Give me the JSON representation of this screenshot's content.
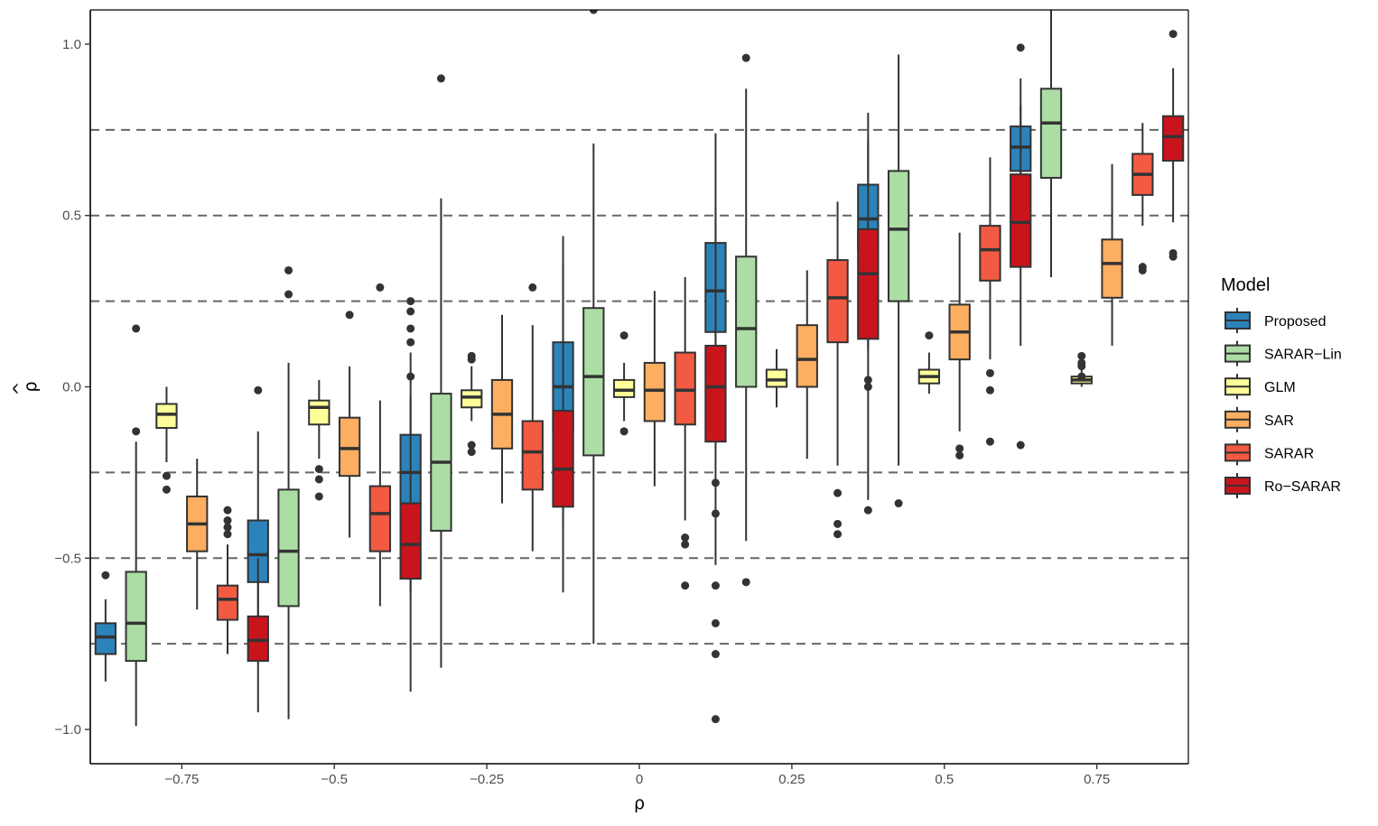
{
  "chart_data": {
    "type": "boxplot",
    "xlabel": "ρ",
    "ylabel": "ρ̂",
    "ylabel_base": "ρ",
    "ylabel_accent": "^",
    "ylim": [
      -1.1,
      1.1
    ],
    "y_ticks": [
      -1.0,
      -0.5,
      0.0,
      0.5,
      1.0
    ],
    "y_tick_labels": [
      "−1.0",
      "−0.5",
      "0.0",
      "0.5",
      "1.0"
    ],
    "x_ticks": [
      -0.75,
      -0.5,
      -0.25,
      0,
      0.25,
      0.5,
      0.75
    ],
    "x_tick_labels": [
      "−0.75",
      "−0.5",
      "−0.25",
      "0",
      "0.25",
      "0.5",
      "0.75"
    ],
    "xlim": [
      -0.9,
      0.9
    ],
    "reference_lines": [
      -0.75,
      -0.5,
      -0.25,
      0.25,
      0.5,
      0.75
    ],
    "grid": false,
    "legend": {
      "title": "Model",
      "position": "right",
      "entries": [
        "Proposed",
        "SARAR−Lin",
        "GLM",
        "SAR",
        "SARAR",
        "Ro−SARAR"
      ]
    },
    "series": [
      {
        "name": "Proposed",
        "color": "#2b83ba",
        "boxes": [
          {
            "x": -0.75,
            "lower": -0.86,
            "q1": -0.78,
            "median": -0.73,
            "q3": -0.69,
            "upper": -0.62,
            "outliers": [
              -0.55
            ]
          },
          {
            "x": -0.5,
            "lower": -0.79,
            "q1": -0.57,
            "median": -0.49,
            "q3": -0.39,
            "upper": -0.13,
            "outliers": [
              -0.01
            ]
          },
          {
            "x": -0.25,
            "lower": -0.6,
            "q1": -0.34,
            "median": -0.25,
            "q3": -0.14,
            "upper": 0.1,
            "outliers": [
              0.25,
              0.17
            ]
          },
          {
            "x": 0,
            "lower": -0.41,
            "q1": -0.13,
            "median": 0.0,
            "q3": 0.13,
            "upper": 0.44,
            "outliers": []
          },
          {
            "x": 0.25,
            "lower": -0.15,
            "q1": 0.16,
            "median": 0.28,
            "q3": 0.42,
            "upper": 0.74,
            "outliers": [
              -0.28,
              -0.37
            ]
          },
          {
            "x": 0.5,
            "lower": 0.11,
            "q1": 0.4,
            "median": 0.49,
            "q3": 0.59,
            "upper": 0.8,
            "outliers": [
              0.02,
              0.0
            ]
          },
          {
            "x": 0.75,
            "lower": 0.5,
            "q1": 0.63,
            "median": 0.7,
            "q3": 0.76,
            "upper": 0.9,
            "outliers": [
              0.99
            ]
          }
        ]
      },
      {
        "name": "SARAR−Lin",
        "color": "#abdda4",
        "boxes": [
          {
            "x": -0.75,
            "lower": -0.99,
            "q1": -0.8,
            "median": -0.69,
            "q3": -0.54,
            "upper": -0.16,
            "outliers": [
              0.17,
              -0.13
            ]
          },
          {
            "x": -0.5,
            "lower": -0.97,
            "q1": -0.64,
            "median": -0.48,
            "q3": -0.3,
            "upper": 0.07,
            "outliers": [
              0.34,
              0.27
            ]
          },
          {
            "x": -0.25,
            "lower": -0.82,
            "q1": -0.42,
            "median": -0.22,
            "q3": -0.02,
            "upper": 0.55,
            "outliers": [
              0.9
            ]
          },
          {
            "x": 0,
            "lower": -0.75,
            "q1": -0.2,
            "median": 0.03,
            "q3": 0.23,
            "upper": 0.71,
            "outliers": [
              1.1
            ]
          },
          {
            "x": 0.25,
            "lower": -0.45,
            "q1": 0.0,
            "median": 0.17,
            "q3": 0.38,
            "upper": 0.87,
            "outliers": [
              0.96,
              -0.57
            ]
          },
          {
            "x": 0.5,
            "lower": -0.23,
            "q1": 0.25,
            "median": 0.46,
            "q3": 0.63,
            "upper": 0.97,
            "outliers": [
              -0.34
            ]
          },
          {
            "x": 0.75,
            "lower": 0.32,
            "q1": 0.61,
            "median": 0.77,
            "q3": 0.87,
            "upper": 1.1,
            "outliers": []
          }
        ]
      },
      {
        "name": "GLM",
        "color": "#ffff99",
        "boxes": [
          {
            "x": -0.75,
            "lower": -0.22,
            "q1": -0.12,
            "median": -0.08,
            "q3": -0.05,
            "upper": 0.0,
            "outliers": [
              -0.26,
              -0.3
            ]
          },
          {
            "x": -0.5,
            "lower": -0.21,
            "q1": -0.11,
            "median": -0.06,
            "q3": -0.04,
            "upper": 0.02,
            "outliers": [
              -0.24,
              -0.27,
              -0.32
            ]
          },
          {
            "x": -0.25,
            "lower": -0.1,
            "q1": -0.06,
            "median": -0.03,
            "q3": -0.01,
            "upper": 0.06,
            "outliers": [
              0.09,
              0.08,
              -0.17,
              -0.19
            ]
          },
          {
            "x": 0,
            "lower": -0.1,
            "q1": -0.03,
            "median": -0.01,
            "q3": 0.02,
            "upper": 0.07,
            "outliers": [
              0.15,
              -0.13
            ]
          },
          {
            "x": 0.25,
            "lower": -0.06,
            "q1": 0.0,
            "median": 0.02,
            "q3": 0.05,
            "upper": 0.11,
            "outliers": []
          },
          {
            "x": 0.5,
            "lower": -0.02,
            "q1": 0.01,
            "median": 0.03,
            "q3": 0.05,
            "upper": 0.1,
            "outliers": [
              0.15
            ]
          },
          {
            "x": 0.75,
            "lower": 0.0,
            "q1": 0.01,
            "median": 0.02,
            "q3": 0.03,
            "upper": 0.05,
            "outliers": [
              0.09,
              0.07,
              0.06,
              0.03
            ]
          }
        ]
      },
      {
        "name": "SAR",
        "color": "#fdae61",
        "boxes": [
          {
            "x": -0.75,
            "lower": -0.65,
            "q1": -0.48,
            "median": -0.4,
            "q3": -0.32,
            "upper": -0.21,
            "outliers": []
          },
          {
            "x": -0.5,
            "lower": -0.44,
            "q1": -0.26,
            "median": -0.18,
            "q3": -0.09,
            "upper": 0.06,
            "outliers": [
              0.21
            ]
          },
          {
            "x": -0.25,
            "lower": -0.34,
            "q1": -0.18,
            "median": -0.08,
            "q3": 0.02,
            "upper": 0.21,
            "outliers": []
          },
          {
            "x": 0,
            "lower": -0.29,
            "q1": -0.1,
            "median": -0.01,
            "q3": 0.07,
            "upper": 0.28,
            "outliers": []
          },
          {
            "x": 0.25,
            "lower": -0.21,
            "q1": 0.0,
            "median": 0.08,
            "q3": 0.18,
            "upper": 0.34,
            "outliers": []
          },
          {
            "x": 0.5,
            "lower": -0.13,
            "q1": 0.08,
            "median": 0.16,
            "q3": 0.24,
            "upper": 0.45,
            "outliers": [
              -0.18,
              -0.2
            ]
          },
          {
            "x": 0.75,
            "lower": 0.12,
            "q1": 0.26,
            "median": 0.36,
            "q3": 0.43,
            "upper": 0.65,
            "outliers": []
          }
        ]
      },
      {
        "name": "SARAR",
        "color": "#f25a41",
        "boxes": [
          {
            "x": -0.75,
            "lower": -0.78,
            "q1": -0.68,
            "median": -0.62,
            "q3": -0.58,
            "upper": -0.46,
            "outliers": [
              -0.36,
              -0.39,
              -0.41,
              -0.43
            ]
          },
          {
            "x": -0.5,
            "lower": -0.64,
            "q1": -0.48,
            "median": -0.37,
            "q3": -0.29,
            "upper": -0.04,
            "outliers": [
              0.29
            ]
          },
          {
            "x": -0.25,
            "lower": -0.48,
            "q1": -0.3,
            "median": -0.19,
            "q3": -0.1,
            "upper": 0.18,
            "outliers": [
              0.29
            ]
          },
          {
            "x": 0,
            "lower": -0.39,
            "q1": -0.11,
            "median": -0.01,
            "q3": 0.1,
            "upper": 0.32,
            "outliers": [
              -0.44,
              -0.46,
              -0.58
            ]
          },
          {
            "x": 0.25,
            "lower": -0.23,
            "q1": 0.13,
            "median": 0.26,
            "q3": 0.37,
            "upper": 0.54,
            "outliers": [
              -0.31,
              -0.4,
              -0.43
            ]
          },
          {
            "x": 0.5,
            "lower": 0.08,
            "q1": 0.31,
            "median": 0.4,
            "q3": 0.47,
            "upper": 0.67,
            "outliers": [
              0.04,
              -0.01,
              -0.16
            ]
          },
          {
            "x": 0.75,
            "lower": 0.47,
            "q1": 0.56,
            "median": 0.62,
            "q3": 0.68,
            "upper": 0.77,
            "outliers": [
              0.35,
              0.34
            ]
          }
        ]
      },
      {
        "name": "Ro−SARAR",
        "color": "#c9141e",
        "boxes": [
          {
            "x": -0.75,
            "lower": -0.95,
            "q1": -0.8,
            "median": -0.74,
            "q3": -0.67,
            "upper": -0.5,
            "outliers": []
          },
          {
            "x": -0.5,
            "lower": -0.89,
            "q1": -0.56,
            "median": -0.46,
            "q3": -0.34,
            "upper": -0.03,
            "outliers": [
              0.22,
              0.13,
              0.03
            ]
          },
          {
            "x": -0.25,
            "lower": -0.6,
            "q1": -0.35,
            "median": -0.24,
            "q3": -0.07,
            "upper": 0.36,
            "outliers": []
          },
          {
            "x": 0,
            "lower": -0.52,
            "q1": -0.16,
            "median": 0.0,
            "q3": 0.12,
            "upper": 0.52,
            "outliers": [
              -0.58,
              -0.69,
              -0.78,
              -0.97
            ]
          },
          {
            "x": 0.25,
            "lower": -0.33,
            "q1": 0.14,
            "median": 0.33,
            "q3": 0.46,
            "upper": 0.72,
            "outliers": [
              -0.36
            ]
          },
          {
            "x": 0.5,
            "lower": 0.12,
            "q1": 0.35,
            "median": 0.48,
            "q3": 0.62,
            "upper": 0.82,
            "outliers": [
              -0.17
            ]
          },
          {
            "x": 0.75,
            "lower": 0.48,
            "q1": 0.66,
            "median": 0.73,
            "q3": 0.79,
            "upper": 0.93,
            "outliers": [
              1.03,
              0.39,
              0.38
            ]
          }
        ]
      }
    ]
  }
}
